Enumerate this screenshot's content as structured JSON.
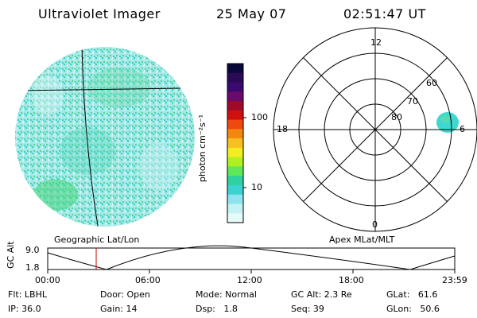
{
  "header": {
    "title": "Ultraviolet Imager",
    "date": "25 May 07",
    "time": "02:51:47 UT"
  },
  "colorbar": {
    "unit_label": "photon cm⁻²s⁻¹",
    "ticks": [
      "100",
      "10"
    ],
    "colors": [
      "#0a0a3a",
      "#2a0a55",
      "#3a0a70",
      "#6a0a6a",
      "#a00a2a",
      "#d01010",
      "#ee4a10",
      "#f38810",
      "#f7c020",
      "#f0ee20",
      "#b0f020",
      "#5ee85a",
      "#2ed2a0",
      "#3cd2d2",
      "#8ee4ec",
      "#c2f2f4",
      "#e6fafa"
    ]
  },
  "left_panel": {
    "caption": "Geographic Lat/Lon"
  },
  "polar_panel": {
    "caption": "Apex MLat/MLT",
    "mlt_labels": [
      "12",
      "18",
      "0",
      "6"
    ],
    "lat_labels": [
      "60",
      "70",
      "80"
    ]
  },
  "altitude_plot": {
    "ylabel": "GC Alt",
    "yticks": [
      "9.0",
      "1.8"
    ],
    "xticks": [
      "00:00",
      "06:00",
      "12:00",
      "18:00",
      "23:59"
    ]
  },
  "status": {
    "filter": "Flt: LBHL",
    "ip": "IP: 36.0",
    "door": "Door: Open",
    "gain": "Gain: 14",
    "mode": "Mode: Normal",
    "dsp": "Dsp:   1.8",
    "gc_alt": "GC Alt: 2.3 Re",
    "seq": "Seq: 39",
    "glat": "GLat:   61.6",
    "glon": "GLon:   50.6"
  }
}
